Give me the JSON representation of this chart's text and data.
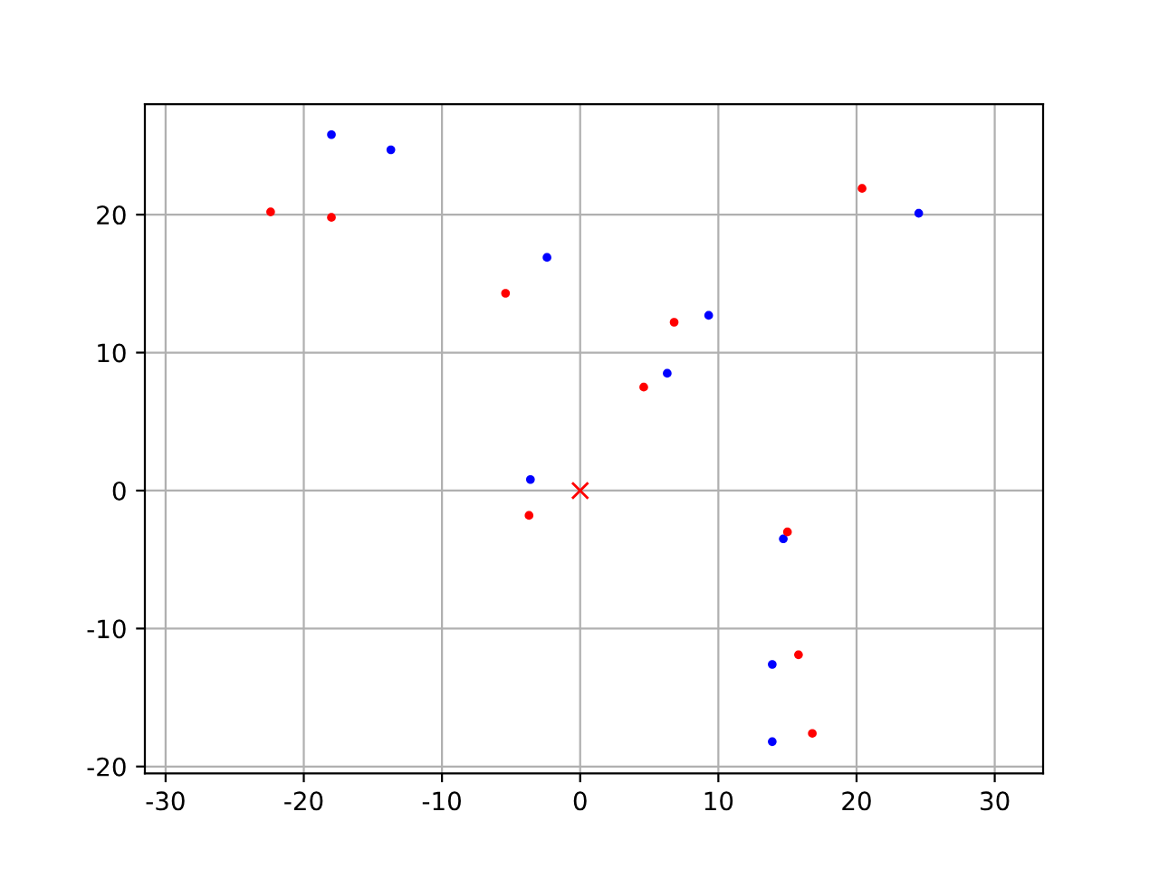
{
  "chart_data": {
    "type": "scatter",
    "xlim": [
      -31.5,
      33.5
    ],
    "ylim": [
      -20.5,
      28
    ],
    "xticks": [
      -30,
      -20,
      -10,
      0,
      10,
      20,
      30
    ],
    "yticks": [
      -20,
      -10,
      0,
      10,
      20
    ],
    "grid": true,
    "series": [
      {
        "color": "#0000ff",
        "marker": "circle",
        "x": [
          -18.0,
          -13.7,
          -2.4,
          9.3,
          6.3,
          -3.6,
          14.7,
          13.9,
          13.9,
          24.5
        ],
        "values": [
          25.8,
          24.7,
          16.9,
          12.7,
          8.5,
          0.8,
          -3.5,
          -12.6,
          -18.2,
          20.1
        ]
      },
      {
        "color": "#ff0000",
        "marker": "circle",
        "x": [
          -22.4,
          -18.0,
          -5.4,
          6.8,
          4.6,
          -3.7,
          15.0,
          15.8,
          16.8,
          20.4
        ],
        "values": [
          20.2,
          19.8,
          14.3,
          12.2,
          7.5,
          -1.8,
          -3.0,
          -11.9,
          -17.6,
          21.9
        ]
      },
      {
        "color": "#ff0000",
        "marker": "cross",
        "x": [
          0
        ],
        "values": [
          0
        ]
      }
    ]
  }
}
